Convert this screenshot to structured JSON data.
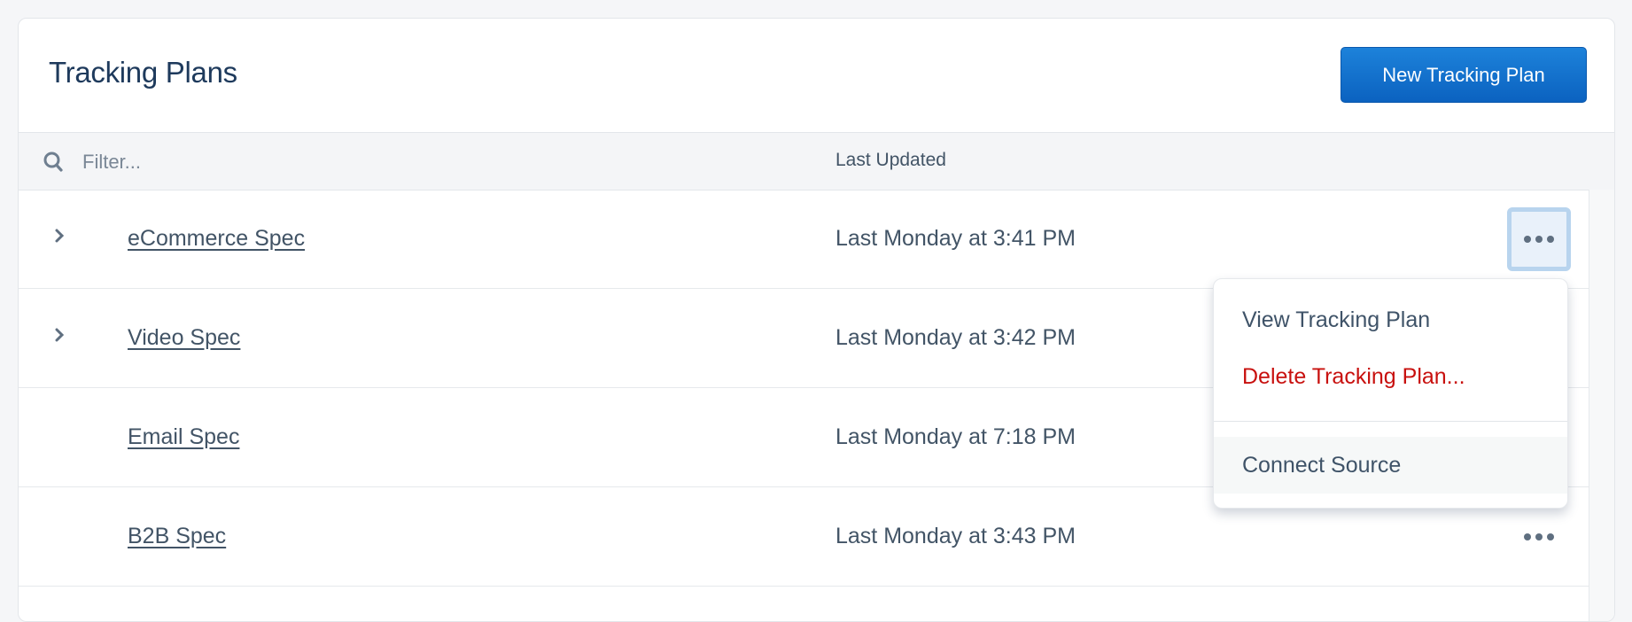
{
  "header": {
    "title": "Tracking Plans",
    "new_button_label": "New Tracking Plan"
  },
  "table": {
    "filter_placeholder": "Filter...",
    "column_last_updated": "Last Updated",
    "rows": [
      {
        "name": "eCommerce Spec",
        "last_updated": "Last Monday at 3:41 PM",
        "expandable": true
      },
      {
        "name": "Video Spec",
        "last_updated": "Last Monday at 3:42 PM",
        "expandable": true
      },
      {
        "name": "Email Spec",
        "last_updated": "Last Monday at 7:18 PM",
        "expandable": false
      },
      {
        "name": "B2B Spec",
        "last_updated": "Last Monday at 3:43 PM",
        "expandable": false
      }
    ]
  },
  "menu": {
    "view": "View Tracking Plan",
    "delete": "Delete Tracking Plan...",
    "connect": "Connect Source"
  },
  "colors": {
    "accent": "#1570cc",
    "danger": "#c8100e",
    "text": "#425466",
    "title": "#1e3a5c"
  }
}
